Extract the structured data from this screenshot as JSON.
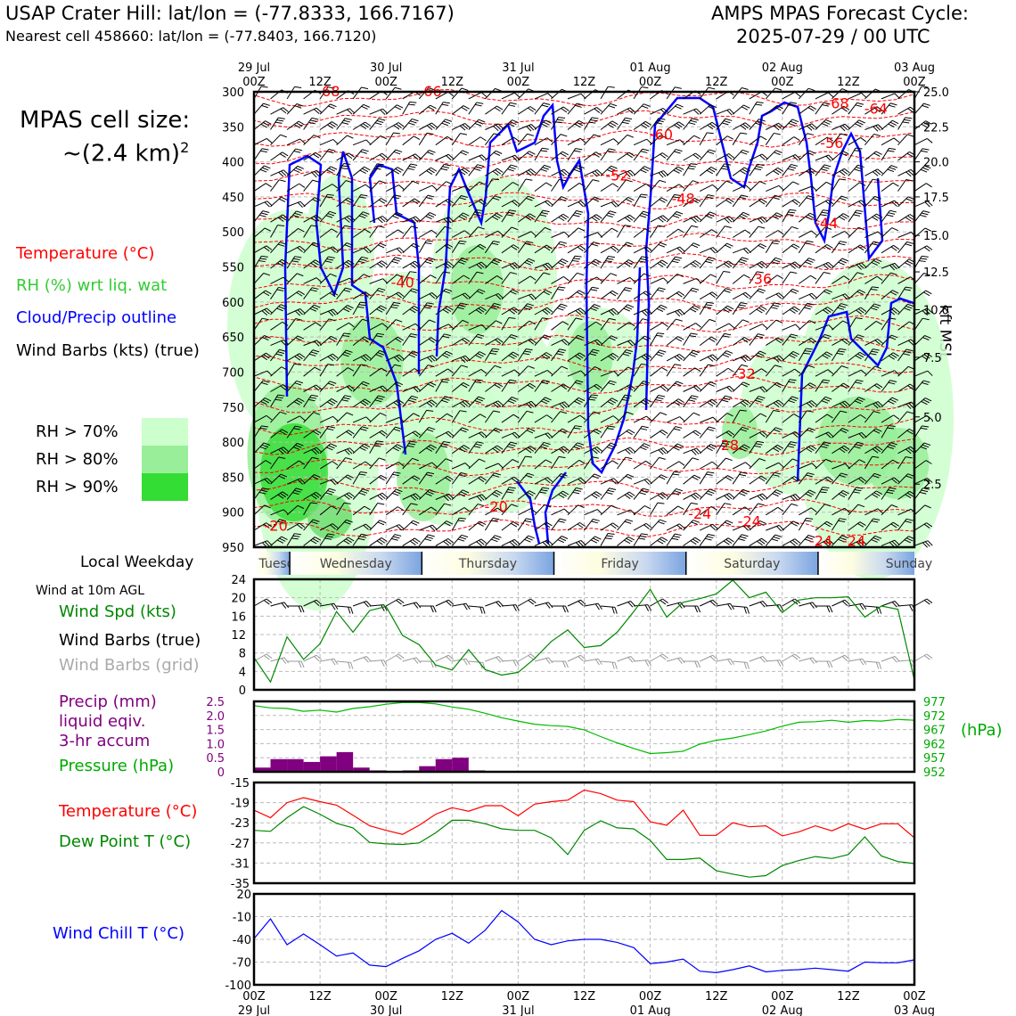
{
  "header": {
    "station": "USAP Crater Hill: lat/lon = (-77.8333, 166.7167)",
    "nearest": "Nearest cell 458660: lat/lon = (-77.8403, 166.7120)",
    "model_line1": "AMPS MPAS Forecast Cycle:",
    "model_line2": "2025-07-29 / 00 UTC"
  },
  "cell_size": {
    "line1": "MPAS cell size:",
    "line2": "~(2.4 km)",
    "sup": "2"
  },
  "legend": {
    "temp": "Temperature (°C)",
    "rh": "RH (%) wrt liq. wat",
    "cloud": "Cloud/Precip outline",
    "barbs": "Wind Barbs (kts) (true)",
    "rh70": "RH > 70%",
    "rh80": "RH > 80%",
    "rh90": "RH > 90%"
  },
  "colors": {
    "temp": "#ff0000",
    "rh_label": "#33cc33",
    "cloud": "#0000ff",
    "rh70": "#ccffcc",
    "rh80": "#99ee99",
    "rh90": "#33dd33",
    "precip": "#800080",
    "pressure": "#00aa00",
    "dew": "#008800",
    "chill": "#0000ff"
  },
  "time_axis": {
    "top": [
      {
        "day": "29 Jul",
        "hour": "00Z"
      },
      {
        "day": "",
        "hour": "12Z"
      },
      {
        "day": "30 Jul",
        "hour": "00Z"
      },
      {
        "day": "",
        "hour": "12Z"
      },
      {
        "day": "31 Jul",
        "hour": "00Z"
      },
      {
        "day": "",
        "hour": "12Z"
      },
      {
        "day": "01 Aug",
        "hour": "00Z"
      },
      {
        "day": "",
        "hour": "12Z"
      },
      {
        "day": "02 Aug",
        "hour": "00Z"
      },
      {
        "day": "",
        "hour": "12Z"
      },
      {
        "day": "03 Aug",
        "hour": "00Z"
      }
    ]
  },
  "weekday": {
    "label": "Local Weekday",
    "days": [
      "Tuesday",
      "Wednesday",
      "Thursday",
      "Friday",
      "Saturday",
      "Sunday"
    ]
  },
  "wind10": {
    "title": "Wind at 10m AGL",
    "spd": "Wind Spd (kts)",
    "barbs_true": "Wind Barbs (true)",
    "barbs_grid": "Wind Barbs (grid)"
  },
  "precip_legend": {
    "l1": "Precip (mm)",
    "l2": "liquid eqiv.",
    "l3": "3-hr accum",
    "pressure": "Pressure (hPa)",
    "hpa": "(hPa)"
  },
  "temp_legend": {
    "temp": "Temperature (°C)",
    "dew": "Dew Point T (°C)"
  },
  "chill_legend": {
    "label": "Wind Chill T (°C)"
  },
  "chart_data": [
    {
      "type": "heatmap",
      "name": "profile",
      "y_left_label": "",
      "y_right_label": "kft MSL",
      "pressure_ticks": [
        "300",
        "350",
        "400",
        "450",
        "500",
        "550",
        "600",
        "650",
        "700",
        "750",
        "800",
        "850",
        "900",
        "950"
      ],
      "height_ticks": [
        "25.0",
        "22.5",
        "20.0",
        "17.5",
        "15.0",
        "12.5",
        "10.0",
        "7.5",
        "5.0",
        "2.5"
      ],
      "height_tick_hpa": [
        300,
        350,
        400,
        450,
        505,
        557,
        611,
        679,
        764,
        860
      ],
      "temp_labels": [
        {
          "text": "-68",
          "hour": 13.5,
          "hpa": 300
        },
        {
          "text": "-66",
          "hour": 32,
          "hpa": 300
        },
        {
          "text": "-68",
          "hour": 106,
          "hpa": 317
        },
        {
          "text": "-64",
          "hour": 113,
          "hpa": 325
        },
        {
          "text": "-60",
          "hour": 74,
          "hpa": 362
        },
        {
          "text": "-56",
          "hour": 105,
          "hpa": 374
        },
        {
          "text": "-52",
          "hour": 66,
          "hpa": 420
        },
        {
          "text": "-48",
          "hour": 78,
          "hpa": 453
        },
        {
          "text": "-44",
          "hour": 104,
          "hpa": 488
        },
        {
          "text": "-40",
          "hour": 27,
          "hpa": 573
        },
        {
          "text": "-36",
          "hour": 92,
          "hpa": 568
        },
        {
          "text": "-32",
          "hour": 89,
          "hpa": 703
        },
        {
          "text": "-28",
          "hour": 86,
          "hpa": 805
        },
        {
          "text": "-20",
          "hour": 4,
          "hpa": 920
        },
        {
          "text": "-20",
          "hour": 44,
          "hpa": 893
        },
        {
          "text": "-24",
          "hour": 81,
          "hpa": 903
        },
        {
          "text": "-24",
          "hour": 90,
          "hpa": 914
        },
        {
          "text": "-24",
          "hour": 103,
          "hpa": 942
        },
        {
          "text": "-24",
          "hour": 109,
          "hpa": 942
        }
      ]
    },
    {
      "type": "line",
      "name": "wind10",
      "ylim": [
        0,
        24
      ],
      "yticks": [
        "0",
        "4",
        "8",
        "12",
        "16",
        "20",
        "24"
      ],
      "x_hours": [
        0,
        3,
        6,
        9,
        12,
        15,
        18,
        21,
        24,
        27,
        30,
        33,
        36,
        39,
        42,
        45,
        48,
        51,
        54,
        57,
        60,
        63,
        66,
        69,
        72,
        75,
        78,
        81,
        84,
        87,
        90,
        93,
        96,
        99,
        102,
        105,
        108,
        111,
        114,
        117,
        120
      ],
      "values": [
        7,
        1.7,
        11.5,
        6.6,
        10,
        17,
        12.5,
        17.2,
        18.1,
        11.8,
        9.8,
        5.4,
        4.3,
        8.7,
        4.4,
        3.2,
        3.8,
        6.8,
        10.5,
        13,
        9.2,
        9.6,
        12.5,
        17,
        21.8,
        15.8,
        19,
        19.8,
        20.8,
        23.8,
        20,
        21.2,
        16.8,
        19.5,
        20,
        20,
        20.2,
        15.8,
        18.2,
        17.5,
        2.1
      ]
    },
    {
      "type": "bar",
      "name": "precip_pressure",
      "ylim": [
        0,
        2.5
      ],
      "yticks": [
        "0",
        "0.5",
        "1.0",
        "1.5",
        "2.0",
        "2.5"
      ],
      "pressure_ticks": [
        "952",
        "957",
        "962",
        "967",
        "972",
        "977"
      ],
      "precip_x_hours": [
        0,
        3,
        6,
        9,
        12,
        15,
        18,
        21,
        24,
        27,
        30,
        33,
        36,
        39
      ],
      "precip_values": [
        0.15,
        0.45,
        0.45,
        0.35,
        0.55,
        0.7,
        0.15,
        0.05,
        0,
        0.05,
        0.2,
        0.45,
        0.5,
        0.05
      ],
      "pressure_x_hours": [
        0,
        3,
        6,
        9,
        12,
        15,
        18,
        21,
        24,
        27,
        30,
        33,
        36,
        39,
        42,
        45,
        48,
        51,
        54,
        57,
        60,
        63,
        66,
        69,
        72,
        75,
        78,
        81,
        84,
        87,
        90,
        93,
        96,
        99,
        102,
        105,
        108,
        111,
        114,
        117,
        120
      ],
      "pressure_values": [
        975.5,
        974.7,
        974.5,
        973.5,
        973.9,
        973.2,
        974.5,
        975.1,
        976,
        976.6,
        976.6,
        976.1,
        975,
        974.2,
        972.8,
        971.2,
        970,
        968.9,
        968.4,
        968.1,
        966.9,
        964.5,
        962.3,
        960.3,
        958.5,
        958.8,
        959.3,
        961.8,
        963.2,
        964,
        965.2,
        966.5,
        968.2,
        969.6,
        969.8,
        970.3,
        969.6,
        970.2,
        970,
        970.6,
        970.3
      ]
    },
    {
      "type": "line",
      "name": "temperature",
      "ylim": [
        -35,
        -15
      ],
      "yticks": [
        "-35",
        "-31",
        "-27",
        "-23",
        "-19",
        "-15"
      ],
      "x_hours": [
        0,
        3,
        6,
        9,
        12,
        15,
        18,
        21,
        24,
        27,
        30,
        33,
        36,
        39,
        42,
        45,
        48,
        51,
        54,
        57,
        60,
        63,
        66,
        69,
        72,
        75,
        78,
        81,
        84,
        87,
        90,
        93,
        96,
        99,
        102,
        105,
        108,
        111,
        114,
        117,
        120
      ],
      "series": [
        {
          "name": "Temperature",
          "values": [
            -20.5,
            -22,
            -19,
            -18,
            -18.8,
            -19.5,
            -21.5,
            -23.6,
            -24.5,
            -25.3,
            -23.5,
            -21.3,
            -20,
            -20.7,
            -19.6,
            -19.6,
            -21.6,
            -19.3,
            -18.8,
            -18.5,
            -16.5,
            -17.2,
            -18.5,
            -18.8,
            -22.8,
            -23.5,
            -20.5,
            -25.5,
            -25.5,
            -23,
            -23.8,
            -23.6,
            -25.6,
            -24.8,
            -23.6,
            -24.6,
            -23.2,
            -24.3,
            -23.2,
            -23.2,
            -26
          ]
        },
        {
          "name": "Dew Point",
          "values": [
            -24.5,
            -24.7,
            -22,
            -19.8,
            -21.3,
            -23.1,
            -24,
            -26.9,
            -27.2,
            -27.3,
            -27,
            -25,
            -22.5,
            -22.5,
            -23.2,
            -24.2,
            -24.5,
            -24.5,
            -26,
            -29.3,
            -24.5,
            -22.6,
            -24,
            -24.2,
            -26.5,
            -30.3,
            -30.3,
            -30,
            -32.5,
            -33.2,
            -33.8,
            -33.5,
            -31.5,
            -30.5,
            -29.7,
            -30.1,
            -29.3,
            -25.8,
            -29.6,
            -30.7,
            -31.1
          ]
        }
      ]
    },
    {
      "type": "line",
      "name": "wind_chill",
      "ylim": [
        -100,
        20
      ],
      "yticks": [
        "-100",
        "-70",
        "-40",
        "-10",
        "20"
      ],
      "x_hours": [
        0,
        3,
        6,
        9,
        12,
        15,
        18,
        21,
        24,
        27,
        30,
        33,
        36,
        39,
        42,
        45,
        48,
        51,
        54,
        57,
        60,
        63,
        66,
        69,
        72,
        75,
        78,
        81,
        84,
        87,
        90,
        93,
        96,
        99,
        102,
        105,
        108,
        111,
        114,
        117,
        120
      ],
      "values": [
        -39,
        -13,
        -47,
        -33,
        -47,
        -62,
        -58,
        -74,
        -76,
        -65,
        -55,
        -40,
        -32,
        -45,
        -28,
        -2,
        -17,
        -40,
        -47,
        -42,
        -40,
        -40,
        -44,
        -51,
        -72,
        -70,
        -66,
        -82,
        -84,
        -80,
        -75,
        -83,
        -81,
        -80,
        -78,
        -80,
        -82,
        -70,
        -71,
        -71,
        -67
      ]
    }
  ]
}
